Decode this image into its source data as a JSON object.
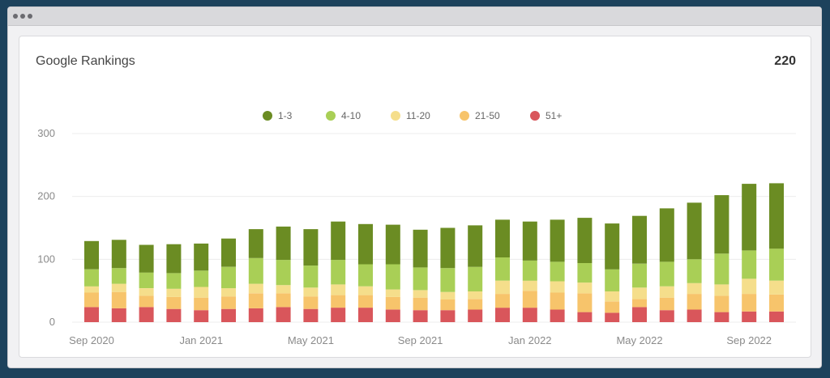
{
  "window": {
    "controls": [
      "dot-1",
      "dot-2",
      "dot-3"
    ]
  },
  "card": {
    "title": "Google Rankings",
    "total": "220"
  },
  "chart_data": {
    "type": "bar",
    "stacked": true,
    "title": "Google Rankings",
    "xlabel": "",
    "ylabel": "",
    "ylim": [
      0,
      300
    ],
    "yticks": [
      0,
      100,
      200,
      300
    ],
    "grid": true,
    "legend_position": "top-center",
    "categories": [
      "Sep 2020",
      "Oct 2020",
      "Nov 2020",
      "Dec 2020",
      "Jan 2021",
      "Feb 2021",
      "Mar 2021",
      "Apr 2021",
      "May 2021",
      "Jun 2021",
      "Jul 2021",
      "Aug 2021",
      "Sep 2021",
      "Oct 2021",
      "Nov 2021",
      "Dec 2021",
      "Jan 2022",
      "Feb 2022",
      "Mar 2022",
      "Apr 2022",
      "May 2022",
      "Jun 2022",
      "Jul 2022",
      "Aug 2022",
      "Sep 2022",
      "Oct 2022"
    ],
    "xtick_labels": [
      {
        "index": 0,
        "label": "Sep 2020"
      },
      {
        "index": 4,
        "label": "Jan 2021"
      },
      {
        "index": 8,
        "label": "May 2021"
      },
      {
        "index": 12,
        "label": "Sep 2021"
      },
      {
        "index": 16,
        "label": "Jan 2022"
      },
      {
        "index": 20,
        "label": "May 2022"
      },
      {
        "index": 24,
        "label": "Sep 2022"
      }
    ],
    "series": [
      {
        "name": "51+",
        "color": "#d9565b",
        "values": [
          24,
          22,
          24,
          21,
          19,
          21,
          22,
          24,
          21,
          23,
          23,
          20,
          19,
          19,
          20,
          23,
          23,
          20,
          16,
          15,
          24,
          19,
          20,
          16,
          17,
          17
        ]
      },
      {
        "name": "21-50",
        "color": "#f7c46b",
        "values": [
          23,
          26,
          18,
          19,
          20,
          20,
          24,
          22,
          20,
          20,
          20,
          20,
          20,
          17,
          17,
          22,
          27,
          27,
          30,
          18,
          13,
          20,
          25,
          26,
          28,
          27
        ]
      },
      {
        "name": "11-20",
        "color": "#f5de8b",
        "values": [
          10,
          13,
          12,
          13,
          17,
          13,
          15,
          13,
          14,
          17,
          14,
          12,
          12,
          12,
          12,
          21,
          16,
          18,
          17,
          16,
          18,
          18,
          17,
          18,
          24,
          22
        ]
      },
      {
        "name": "4-10",
        "color": "#a9cf56",
        "values": [
          27,
          25,
          25,
          25,
          26,
          34,
          41,
          40,
          35,
          39,
          35,
          40,
          36,
          38,
          39,
          37,
          32,
          31,
          31,
          35,
          38,
          39,
          38,
          49,
          45,
          51
        ]
      },
      {
        "name": "1-3",
        "color": "#6b8c23",
        "values": [
          45,
          45,
          44,
          46,
          43,
          45,
          46,
          53,
          58,
          61,
          64,
          63,
          60,
          64,
          66,
          60,
          62,
          67,
          72,
          73,
          76,
          85,
          90,
          93,
          106,
          104
        ]
      }
    ]
  }
}
